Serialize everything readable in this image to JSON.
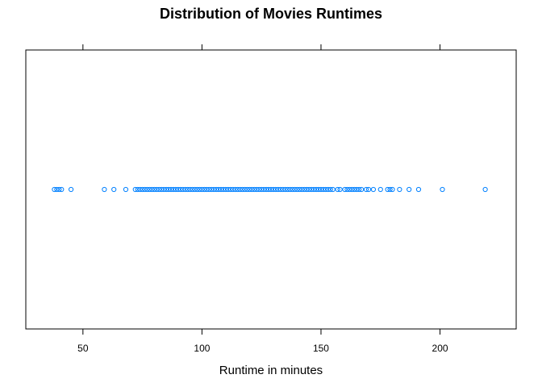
{
  "chart_data": {
    "type": "scatter",
    "title": "Distribution of Movies Runtimes",
    "xlabel": "Runtime in minutes",
    "ylabel": "",
    "xlim": [
      26,
      232
    ],
    "x_ticks": [
      50,
      100,
      150,
      200
    ],
    "x_tick_labels": [
      "50",
      "100",
      "150",
      "200"
    ],
    "grid": false,
    "legend": "none",
    "point_color": "#0080ff",
    "box_color": "#000000",
    "series": [
      {
        "values": [
          38,
          39,
          40,
          41,
          45,
          59,
          63,
          68,
          72,
          73,
          74,
          75,
          76,
          77,
          78,
          79,
          80,
          81,
          82,
          83,
          84,
          85,
          86,
          87,
          88,
          89,
          90,
          91,
          92,
          93,
          94,
          95,
          96,
          97,
          98,
          99,
          100,
          101,
          102,
          103,
          104,
          105,
          106,
          107,
          108,
          109,
          110,
          111,
          112,
          113,
          114,
          115,
          116,
          117,
          118,
          119,
          120,
          121,
          122,
          123,
          124,
          125,
          126,
          127,
          128,
          129,
          130,
          131,
          132,
          133,
          134,
          135,
          136,
          137,
          138,
          139,
          140,
          141,
          142,
          143,
          144,
          145,
          146,
          147,
          148,
          149,
          150,
          151,
          152,
          153,
          154,
          155,
          157,
          158,
          160,
          161,
          162,
          163,
          164,
          165,
          166,
          167,
          169,
          170,
          172,
          175,
          178,
          179,
          180,
          183,
          187,
          191,
          201,
          219
        ]
      }
    ]
  }
}
